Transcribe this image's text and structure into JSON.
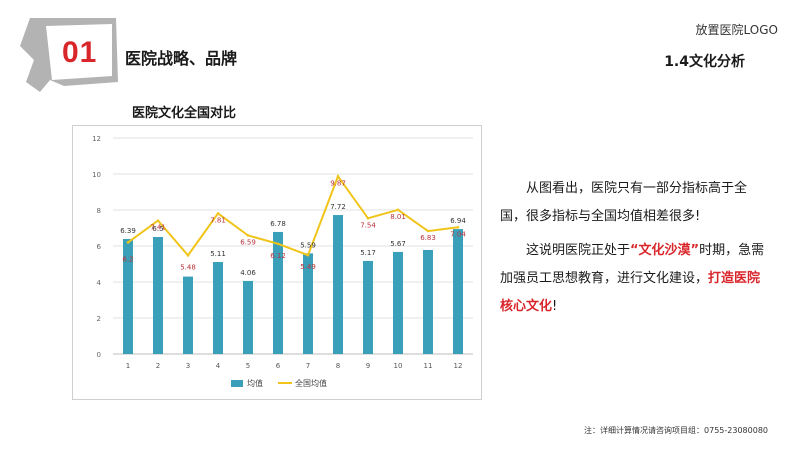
{
  "header": {
    "section_number": "01",
    "section_title": "医院战略、品牌",
    "logo_text": "放置医院LOGO",
    "subsection": "1.4文化分析"
  },
  "colors": {
    "accent_red": "#d8262b",
    "bar_teal": "#3aa0b9",
    "line_yellow": "#f0c419",
    "header_gray": "#b3b3b3"
  },
  "chart_data": {
    "type": "bar",
    "title": "医院文化全国对比",
    "categories": [
      "1",
      "2",
      "3",
      "4",
      "5",
      "6",
      "7",
      "8",
      "9",
      "10",
      "11",
      "12"
    ],
    "ylim": [
      0,
      12
    ],
    "yticks": [
      "0",
      "2",
      "4",
      "6",
      "8",
      "10",
      "12"
    ],
    "grid": true,
    "legend_position": "bottom",
    "series": [
      {
        "name": "均值",
        "kind": "bar",
        "values": [
          6.39,
          6.5,
          4.3,
          5.11,
          4.06,
          6.78,
          5.59,
          7.72,
          5.17,
          5.67,
          5.78,
          6.94
        ],
        "labels": [
          "6.39",
          "6.5",
          "",
          "5.11",
          "4.06",
          "6.78",
          "5.59",
          "7.72",
          "5.17",
          "5.67",
          "",
          "6.94"
        ]
      },
      {
        "name": "全国均值",
        "kind": "line",
        "values": [
          6.2,
          7.41,
          5.48,
          7.81,
          6.59,
          6.12,
          5.49,
          9.87,
          7.54,
          8.01,
          6.83,
          7.04
        ],
        "labels": [
          "6.2",
          "7.41",
          "5.48",
          "7.81",
          "6.59",
          "6.12",
          "5.49",
          "9.87",
          "7.54",
          "8.01",
          "6.83",
          "7.04"
        ]
      }
    ]
  },
  "text": {
    "p1": "从图看出，医院只有一部分指标高于全国，很多指标与全国均值相差很多!",
    "p2_a": "这说明医院正处于",
    "p2_b": "“文化沙漠”",
    "p2_c": "时期，急需加强员工思想教育，进行文化建设，",
    "p2_d": "打造医院核心文化",
    "p2_e": "!"
  },
  "footer": "注：详细计算情况请咨询项目组：0755-23080080"
}
